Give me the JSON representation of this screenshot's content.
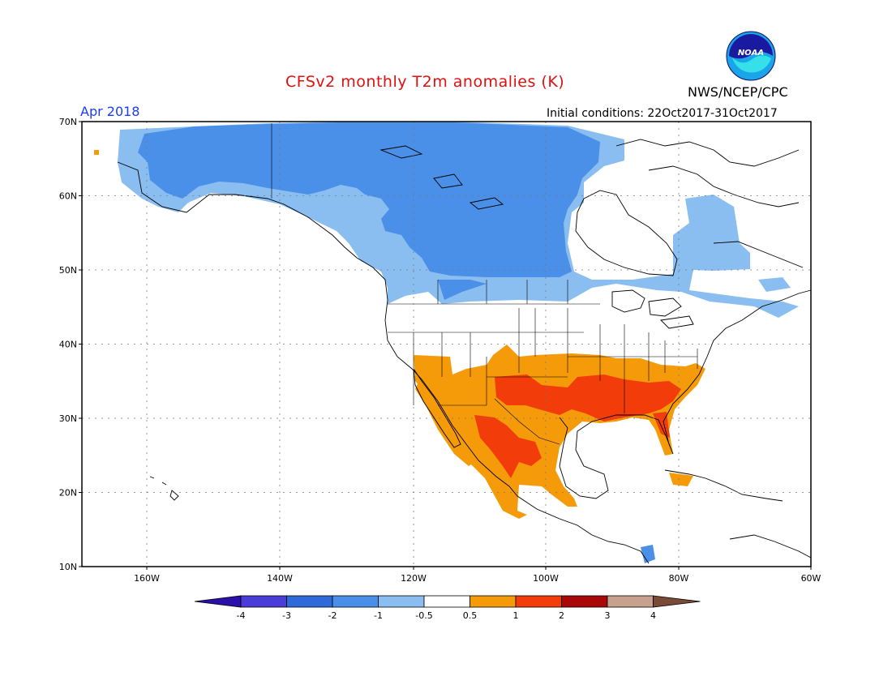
{
  "header": {
    "title": "CFSv2 monthly T2m anomalies (K)",
    "valid_month": "Apr 2018",
    "initial_conditions": "Initial conditions: 22Oct2017-31Oct2017",
    "agency": "NWS/NCEP/CPC",
    "logo_text": "NOAA"
  },
  "map": {
    "lat_labels": [
      "70N",
      "60N",
      "50N",
      "40N",
      "30N",
      "20N",
      "10N"
    ],
    "lon_labels": [
      "160W",
      "140W",
      "120W",
      "100W",
      "80W",
      "60W"
    ],
    "grid": "dotted",
    "colors": {
      "neg_0_5_to_1": "#8bbef0",
      "neg_1_to_2": "#4a90e8",
      "pos_0_5_to_1": "#f59b0a",
      "pos_1_to_2": "#f23c0a",
      "land_outline": "#000000"
    }
  },
  "legend": {
    "tick_labels": [
      "-4",
      "-3",
      "-2",
      "-1",
      "-0.5",
      "0.5",
      "1",
      "2",
      "3",
      "4"
    ],
    "colors": [
      "#2a10a8",
      "#4a3cd8",
      "#2e6ad8",
      "#4a90e8",
      "#8bbef0",
      "#ffffff",
      "#f59b0a",
      "#f23c0a",
      "#a80808",
      "#c8a08e",
      "#7a4a38"
    ]
  }
}
